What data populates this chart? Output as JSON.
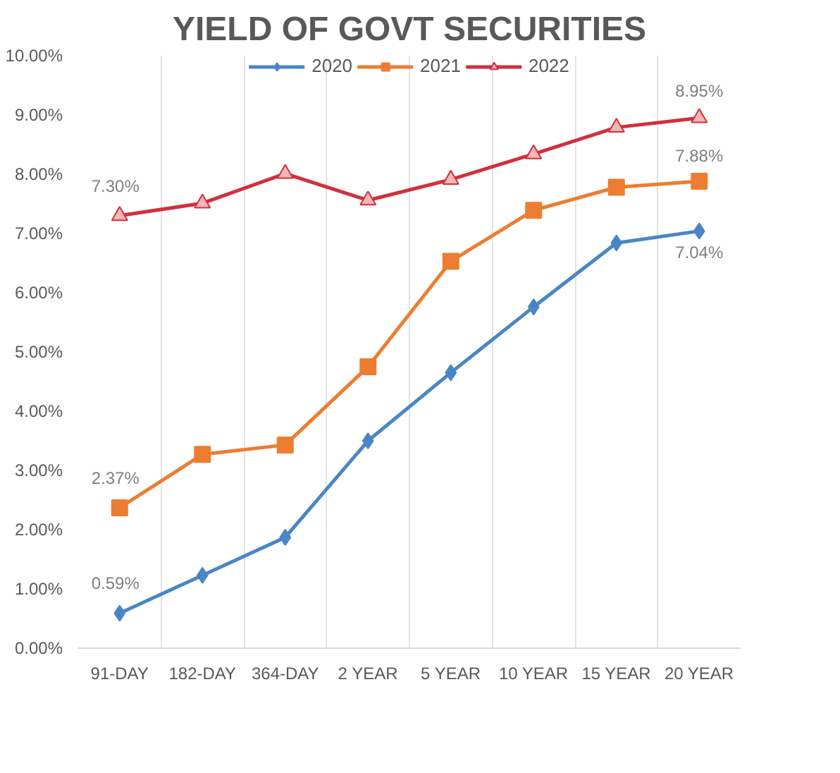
{
  "chart_data": {
    "type": "line",
    "title": "YIELD OF GOVT SECURITIES",
    "categories": [
      "91-DAY",
      "182-DAY",
      "364-DAY",
      "2 YEAR",
      "5 YEAR",
      "10 YEAR",
      "15 YEAR",
      "20 YEAR"
    ],
    "series": [
      {
        "name": "2020",
        "color": "#4a86c5",
        "marker": "diamond",
        "values": [
          0.59,
          1.23,
          1.87,
          3.5,
          4.65,
          5.76,
          6.84,
          7.04
        ],
        "value_labels": [
          "0.59%",
          null,
          null,
          null,
          null,
          null,
          null,
          "7.04%"
        ]
      },
      {
        "name": "2021",
        "color": "#ed7d31",
        "marker": "square",
        "values": [
          2.37,
          3.27,
          3.43,
          4.75,
          6.53,
          7.39,
          7.78,
          7.88
        ],
        "value_labels": [
          "2.37%",
          null,
          null,
          null,
          null,
          null,
          null,
          "7.88%"
        ]
      },
      {
        "name": "2022",
        "color": "#d0303d",
        "marker": "triangle",
        "values": [
          7.3,
          7.51,
          8.01,
          7.56,
          7.91,
          8.34,
          8.79,
          8.95
        ],
        "value_labels": [
          "7.30%",
          null,
          null,
          null,
          null,
          null,
          null,
          "8.95%"
        ]
      }
    ],
    "ylim": [
      0,
      10
    ],
    "yticks": [
      {
        "value": 0,
        "label": "0.00%"
      },
      {
        "value": 1,
        "label": "1.00%"
      },
      {
        "value": 2,
        "label": "2.00%"
      },
      {
        "value": 3,
        "label": "3.00%"
      },
      {
        "value": 4,
        "label": "4.00%"
      },
      {
        "value": 5,
        "label": "5.00%"
      },
      {
        "value": 6,
        "label": "6.00%"
      },
      {
        "value": 7,
        "label": "7.00%"
      },
      {
        "value": 8,
        "label": "8.00%"
      },
      {
        "value": 9,
        "label": "9.00%"
      },
      {
        "value": 10,
        "label": "10.00%"
      }
    ],
    "grid": "x",
    "legend": "top",
    "line_style": "solid"
  }
}
